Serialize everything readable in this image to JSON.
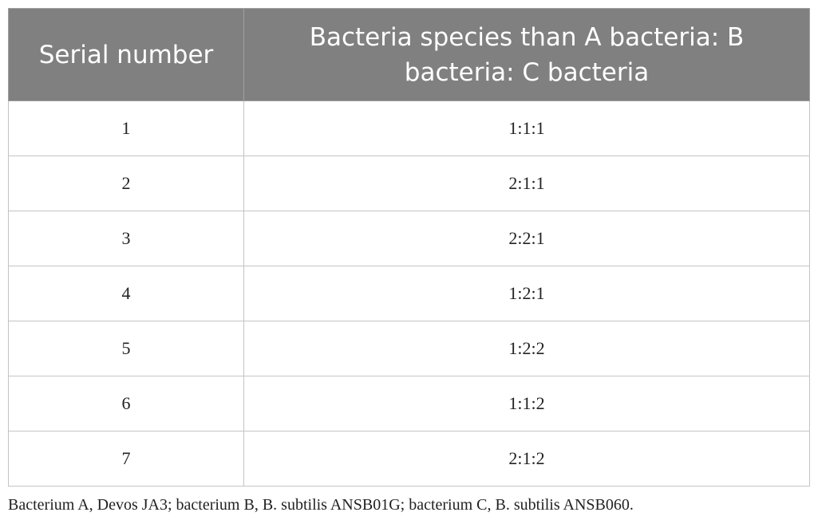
{
  "table": {
    "headers": [
      "Serial number",
      "Bacteria species than A bacteria: B bacteria: C bacteria"
    ],
    "rows": [
      {
        "serial": "1",
        "ratio": "1:1:1"
      },
      {
        "serial": "2",
        "ratio": "2:1:1"
      },
      {
        "serial": "3",
        "ratio": "2:2:1"
      },
      {
        "serial": "4",
        "ratio": "1:2:1"
      },
      {
        "serial": "5",
        "ratio": "1:2:2"
      },
      {
        "serial": "6",
        "ratio": "1:1:2"
      },
      {
        "serial": "7",
        "ratio": "2:1:2"
      }
    ]
  },
  "footnote": "Bacterium A, Devos JA3; bacterium B, B. subtilis ANSB01G; bacterium C, B. subtilis ANSB060.",
  "colors": {
    "header_background": "#808080",
    "header_text": "#ffffff",
    "grid_line": "#c4c4c4"
  }
}
